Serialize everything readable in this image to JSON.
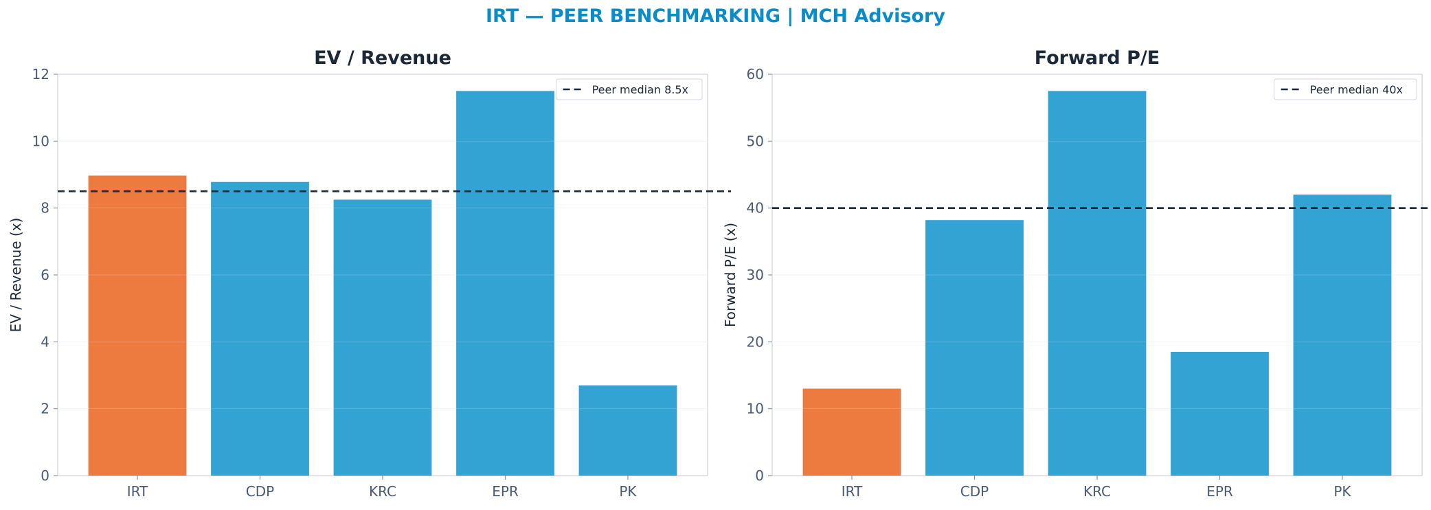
{
  "suptitle": "IRT — PEER BENCHMARKING | MCH Advisory",
  "colors": {
    "highlight": "#ed7a3e",
    "bar": "#33a3d4",
    "median_line": "#1b2838",
    "suptitle": "#0a8cc8"
  },
  "chart_data": [
    {
      "type": "bar",
      "title": "EV / Revenue",
      "xlabel": "",
      "ylabel": "EV / Revenue (x)",
      "categories": [
        "IRT",
        "CDP",
        "KRC",
        "EPR",
        "PK"
      ],
      "values": [
        8.97,
        8.78,
        8.25,
        11.5,
        2.7
      ],
      "highlight_category": "IRT",
      "ylim": [
        0,
        12
      ],
      "yticks": [
        0,
        2,
        4,
        6,
        8,
        10,
        12
      ],
      "reference_line": {
        "value": 8.5,
        "label": "Peer median 8.5x"
      },
      "legend": "top-right",
      "grid": "horizontal"
    },
    {
      "type": "bar",
      "title": "Forward P/E",
      "xlabel": "",
      "ylabel": "Forward P/E (x)",
      "categories": [
        "IRT",
        "CDP",
        "KRC",
        "EPR",
        "PK"
      ],
      "values": [
        13.0,
        38.2,
        57.5,
        18.5,
        42.0
      ],
      "highlight_category": "IRT",
      "ylim": [
        0,
        60
      ],
      "yticks": [
        0,
        10,
        20,
        30,
        40,
        50,
        60
      ],
      "reference_line": {
        "value": 40,
        "label": "Peer median 40x"
      },
      "legend": "top-right",
      "grid": "horizontal"
    }
  ]
}
